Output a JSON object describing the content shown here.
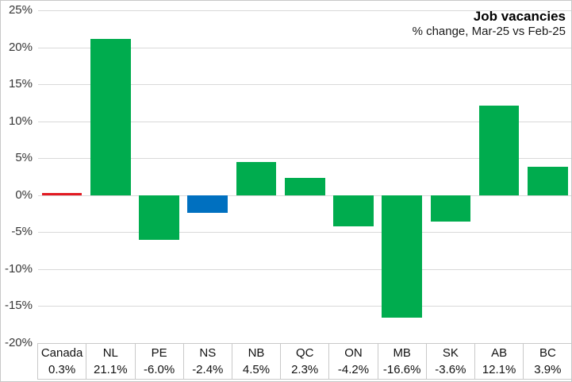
{
  "chart_data": {
    "type": "bar",
    "title": "Job vacancies",
    "subtitle": "% change, Mar-25 vs Feb-25",
    "categories": [
      "Canada",
      "NL",
      "PE",
      "NS",
      "NB",
      "QC",
      "ON",
      "MB",
      "SK",
      "AB",
      "BC"
    ],
    "values": [
      0.3,
      21.1,
      -6.0,
      -2.4,
      4.5,
      2.3,
      -4.2,
      -16.6,
      -3.6,
      12.1,
      3.9
    ],
    "value_labels": [
      "0.3%",
      "21.1%",
      "-6.0%",
      "-2.4%",
      "4.5%",
      "2.3%",
      "-4.2%",
      "-16.6%",
      "-3.6%",
      "12.1%",
      "3.9%"
    ],
    "bar_colors": [
      "#e21a22",
      "#00ac4e",
      "#00ac4e",
      "#0070c0",
      "#00ac4e",
      "#00ac4e",
      "#00ac4e",
      "#00ac4e",
      "#00ac4e",
      "#00ac4e",
      "#00ac4e"
    ],
    "xlabel": "",
    "ylabel": "",
    "ylim": [
      -20,
      25
    ],
    "ytick_step": 5,
    "yticks": [
      25,
      20,
      15,
      10,
      5,
      0,
      -5,
      -10,
      -15,
      -20
    ],
    "ytick_labels": [
      "25%",
      "20%",
      "15%",
      "10%",
      "5%",
      "0%",
      "-5%",
      "-10%",
      "-15%",
      "-20%"
    ],
    "grid": true,
    "legend": "none",
    "colors": {
      "green_default": "#00ac4e",
      "canada_red": "#e21a22",
      "ns_blue": "#0070c0",
      "gridline_gray": "#d9d9d9"
    }
  }
}
